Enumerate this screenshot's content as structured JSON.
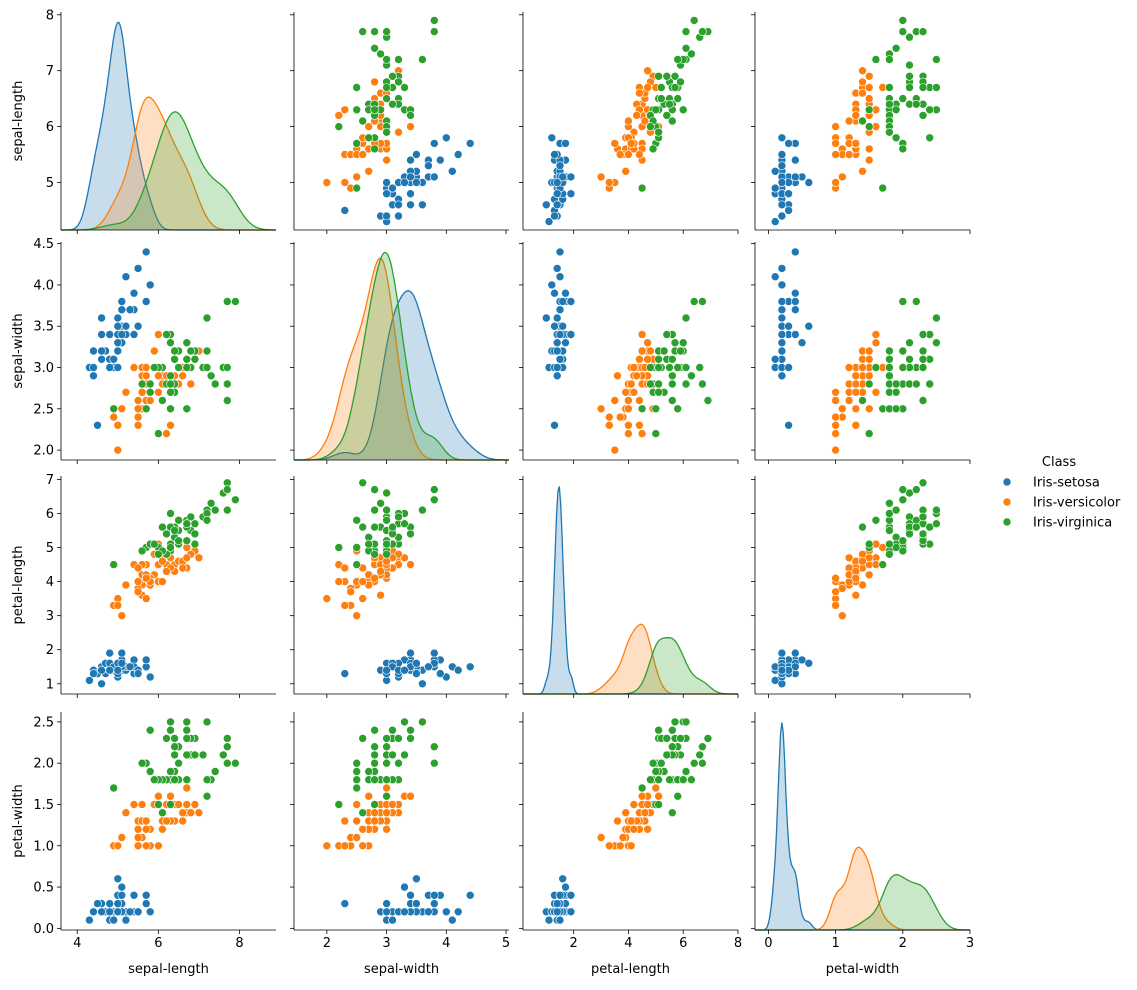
{
  "chart_data": {
    "type": "scatter",
    "subtype": "pairplot",
    "variables": [
      "sepal-length",
      "sepal-width",
      "petal-length",
      "petal-width"
    ],
    "axes": {
      "sepal-length": {
        "range": [
          3.6,
          8.9
        ],
        "ticks": [
          4,
          6,
          8
        ]
      },
      "sepal-width": {
        "range": [
          1.45,
          5.05
        ],
        "ticks": [
          2,
          3,
          4,
          5
        ]
      },
      "petal-length": {
        "range": [
          0.15,
          8.0
        ],
        "ticks": [
          2,
          4,
          6,
          8
        ]
      },
      "petal-width": {
        "range": [
          -0.2,
          3.0
        ],
        "ticks": [
          0,
          1,
          2,
          3
        ]
      }
    },
    "y_axes": {
      "sepal-length": {
        "range": [
          4.15,
          8.05
        ],
        "ticks": [
          5,
          6,
          7,
          8
        ]
      },
      "sepal-width": {
        "range": [
          1.88,
          4.52
        ],
        "ticks": [
          2.0,
          2.5,
          3.0,
          3.5,
          4.0,
          4.5
        ]
      },
      "petal-length": {
        "range": [
          0.7,
          7.1
        ],
        "ticks": [
          1,
          2,
          3,
          4,
          5,
          6,
          7
        ]
      },
      "petal-width": {
        "range": [
          -0.02,
          2.62
        ],
        "ticks": [
          0.0,
          0.5,
          1.0,
          1.5,
          2.0,
          2.5
        ]
      }
    },
    "legend": {
      "title": "Class",
      "placement": "right",
      "entries": [
        "Iris-setosa",
        "Iris-versicolor",
        "Iris-virginica"
      ]
    },
    "grid": false,
    "series": [
      {
        "name": "Iris-setosa",
        "color": "#1f77b4",
        "columns": [
          "sepal-length",
          "sepal-width",
          "petal-length",
          "petal-width"
        ],
        "points": [
          [
            5.1,
            3.5,
            1.4,
            0.2
          ],
          [
            4.9,
            3.0,
            1.4,
            0.2
          ],
          [
            4.7,
            3.2,
            1.3,
            0.2
          ],
          [
            4.6,
            3.1,
            1.5,
            0.2
          ],
          [
            5.0,
            3.6,
            1.4,
            0.2
          ],
          [
            5.4,
            3.9,
            1.7,
            0.4
          ],
          [
            4.6,
            3.4,
            1.4,
            0.3
          ],
          [
            5.0,
            3.4,
            1.5,
            0.2
          ],
          [
            4.4,
            2.9,
            1.4,
            0.2
          ],
          [
            4.9,
            3.1,
            1.5,
            0.1
          ],
          [
            5.4,
            3.7,
            1.5,
            0.2
          ],
          [
            4.8,
            3.4,
            1.6,
            0.2
          ],
          [
            4.8,
            3.0,
            1.4,
            0.1
          ],
          [
            4.3,
            3.0,
            1.1,
            0.1
          ],
          [
            5.8,
            4.0,
            1.2,
            0.2
          ],
          [
            5.7,
            4.4,
            1.5,
            0.4
          ],
          [
            5.4,
            3.9,
            1.3,
            0.4
          ],
          [
            5.1,
            3.5,
            1.4,
            0.3
          ],
          [
            5.7,
            3.8,
            1.7,
            0.3
          ],
          [
            5.1,
            3.8,
            1.5,
            0.3
          ],
          [
            5.4,
            3.4,
            1.7,
            0.2
          ],
          [
            5.1,
            3.7,
            1.5,
            0.4
          ],
          [
            4.6,
            3.6,
            1.0,
            0.2
          ],
          [
            5.1,
            3.3,
            1.7,
            0.5
          ],
          [
            4.8,
            3.4,
            1.9,
            0.2
          ],
          [
            5.0,
            3.0,
            1.6,
            0.2
          ],
          [
            5.0,
            3.4,
            1.6,
            0.4
          ],
          [
            5.2,
            3.5,
            1.5,
            0.2
          ],
          [
            5.2,
            3.4,
            1.4,
            0.2
          ],
          [
            4.7,
            3.2,
            1.6,
            0.2
          ],
          [
            4.8,
            3.1,
            1.6,
            0.2
          ],
          [
            5.4,
            3.4,
            1.5,
            0.4
          ],
          [
            5.2,
            4.1,
            1.5,
            0.1
          ],
          [
            5.5,
            4.2,
            1.4,
            0.2
          ],
          [
            4.9,
            3.1,
            1.5,
            0.1
          ],
          [
            5.0,
            3.2,
            1.2,
            0.2
          ],
          [
            5.5,
            3.5,
            1.3,
            0.2
          ],
          [
            4.9,
            3.1,
            1.5,
            0.1
          ],
          [
            4.4,
            3.0,
            1.3,
            0.2
          ],
          [
            5.1,
            3.4,
            1.5,
            0.2
          ],
          [
            5.0,
            3.5,
            1.3,
            0.3
          ],
          [
            4.5,
            2.3,
            1.3,
            0.3
          ],
          [
            4.4,
            3.2,
            1.3,
            0.2
          ],
          [
            5.0,
            3.5,
            1.6,
            0.6
          ],
          [
            5.1,
            3.8,
            1.9,
            0.4
          ],
          [
            4.8,
            3.0,
            1.4,
            0.3
          ],
          [
            5.1,
            3.8,
            1.6,
            0.2
          ],
          [
            4.6,
            3.2,
            1.4,
            0.2
          ],
          [
            5.3,
            3.7,
            1.5,
            0.2
          ],
          [
            5.0,
            3.3,
            1.4,
            0.2
          ]
        ]
      },
      {
        "name": "Iris-versicolor",
        "color": "#ff7f0e",
        "columns": [
          "sepal-length",
          "sepal-width",
          "petal-length",
          "petal-width"
        ],
        "points": [
          [
            7.0,
            3.2,
            4.7,
            1.4
          ],
          [
            6.4,
            3.2,
            4.5,
            1.5
          ],
          [
            6.9,
            3.1,
            4.9,
            1.5
          ],
          [
            5.5,
            2.3,
            4.0,
            1.3
          ],
          [
            6.5,
            2.8,
            4.6,
            1.5
          ],
          [
            5.7,
            2.8,
            4.5,
            1.3
          ],
          [
            6.3,
            3.3,
            4.7,
            1.6
          ],
          [
            4.9,
            2.4,
            3.3,
            1.0
          ],
          [
            6.6,
            2.9,
            4.6,
            1.3
          ],
          [
            5.2,
            2.7,
            3.9,
            1.4
          ],
          [
            5.0,
            2.0,
            3.5,
            1.0
          ],
          [
            5.9,
            3.0,
            4.2,
            1.5
          ],
          [
            6.0,
            2.2,
            4.0,
            1.0
          ],
          [
            6.1,
            2.9,
            4.7,
            1.4
          ],
          [
            5.6,
            2.9,
            3.6,
            1.3
          ],
          [
            6.7,
            3.1,
            4.4,
            1.4
          ],
          [
            5.6,
            3.0,
            4.5,
            1.5
          ],
          [
            5.8,
            2.7,
            4.1,
            1.0
          ],
          [
            6.2,
            2.2,
            4.5,
            1.5
          ],
          [
            5.6,
            2.5,
            3.9,
            1.1
          ],
          [
            5.9,
            3.2,
            4.8,
            1.8
          ],
          [
            6.1,
            2.8,
            4.0,
            1.3
          ],
          [
            6.3,
            2.5,
            4.9,
            1.5
          ],
          [
            6.1,
            2.8,
            4.7,
            1.2
          ],
          [
            6.4,
            2.9,
            4.3,
            1.3
          ],
          [
            6.6,
            3.0,
            4.4,
            1.4
          ],
          [
            6.8,
            2.8,
            4.8,
            1.4
          ],
          [
            6.7,
            3.0,
            5.0,
            1.7
          ],
          [
            6.0,
            2.9,
            4.5,
            1.5
          ],
          [
            5.7,
            2.6,
            3.5,
            1.0
          ],
          [
            5.5,
            2.4,
            3.8,
            1.1
          ],
          [
            5.5,
            2.4,
            3.7,
            1.0
          ],
          [
            5.8,
            2.7,
            3.9,
            1.2
          ],
          [
            6.0,
            2.7,
            5.1,
            1.6
          ],
          [
            5.4,
            3.0,
            4.5,
            1.5
          ],
          [
            6.0,
            3.4,
            4.5,
            1.6
          ],
          [
            6.7,
            3.1,
            4.7,
            1.5
          ],
          [
            6.3,
            2.3,
            4.4,
            1.3
          ],
          [
            5.6,
            3.0,
            4.1,
            1.3
          ],
          [
            5.5,
            2.5,
            4.0,
            1.3
          ],
          [
            5.5,
            2.6,
            4.4,
            1.2
          ],
          [
            6.1,
            3.0,
            4.6,
            1.4
          ],
          [
            5.8,
            2.6,
            4.0,
            1.2
          ],
          [
            5.0,
            2.3,
            3.3,
            1.0
          ],
          [
            5.6,
            2.7,
            4.2,
            1.3
          ],
          [
            5.7,
            3.0,
            4.2,
            1.2
          ],
          [
            5.7,
            2.9,
            4.2,
            1.3
          ],
          [
            6.2,
            2.9,
            4.3,
            1.3
          ],
          [
            5.1,
            2.5,
            3.0,
            1.1
          ],
          [
            5.7,
            2.8,
            4.1,
            1.3
          ]
        ]
      },
      {
        "name": "Iris-virginica",
        "color": "#2ca02c",
        "columns": [
          "sepal-length",
          "sepal-width",
          "petal-length",
          "petal-width"
        ],
        "points": [
          [
            6.3,
            3.3,
            6.0,
            2.5
          ],
          [
            5.8,
            2.7,
            5.1,
            1.9
          ],
          [
            7.1,
            3.0,
            5.9,
            2.1
          ],
          [
            6.3,
            2.9,
            5.6,
            1.8
          ],
          [
            6.5,
            3.0,
            5.8,
            2.2
          ],
          [
            7.6,
            3.0,
            6.6,
            2.1
          ],
          [
            4.9,
            2.5,
            4.5,
            1.7
          ],
          [
            7.3,
            2.9,
            6.3,
            1.8
          ],
          [
            6.7,
            2.5,
            5.8,
            1.8
          ],
          [
            7.2,
            3.6,
            6.1,
            2.5
          ],
          [
            6.5,
            3.2,
            5.1,
            2.0
          ],
          [
            6.4,
            2.7,
            5.3,
            1.9
          ],
          [
            6.8,
            3.0,
            5.5,
            2.1
          ],
          [
            5.7,
            2.5,
            5.0,
            2.0
          ],
          [
            5.8,
            2.8,
            5.1,
            2.4
          ],
          [
            6.4,
            3.2,
            5.3,
            2.3
          ],
          [
            6.5,
            3.0,
            5.5,
            1.8
          ],
          [
            7.7,
            3.8,
            6.7,
            2.2
          ],
          [
            7.7,
            2.6,
            6.9,
            2.3
          ],
          [
            6.0,
            2.2,
            5.0,
            1.5
          ],
          [
            6.9,
            3.2,
            5.7,
            2.3
          ],
          [
            5.6,
            2.8,
            4.9,
            2.0
          ],
          [
            7.7,
            2.8,
            6.7,
            2.0
          ],
          [
            6.3,
            2.7,
            4.9,
            1.8
          ],
          [
            6.7,
            3.3,
            5.7,
            2.1
          ],
          [
            7.2,
            3.2,
            6.0,
            1.8
          ],
          [
            6.2,
            2.8,
            4.8,
            1.8
          ],
          [
            6.1,
            3.0,
            4.9,
            1.8
          ],
          [
            6.4,
            2.8,
            5.6,
            2.1
          ],
          [
            7.2,
            3.0,
            5.8,
            1.6
          ],
          [
            7.4,
            2.8,
            6.1,
            1.9
          ],
          [
            7.9,
            3.8,
            6.4,
            2.0
          ],
          [
            6.4,
            2.8,
            5.6,
            2.2
          ],
          [
            6.3,
            2.8,
            5.1,
            1.5
          ],
          [
            6.1,
            2.6,
            5.6,
            1.4
          ],
          [
            7.7,
            3.0,
            6.1,
            2.3
          ],
          [
            6.3,
            3.4,
            5.6,
            2.4
          ],
          [
            6.4,
            3.1,
            5.5,
            1.8
          ],
          [
            6.0,
            3.0,
            4.8,
            1.8
          ],
          [
            6.9,
            3.1,
            5.4,
            2.1
          ],
          [
            6.7,
            3.1,
            5.6,
            2.4
          ],
          [
            6.9,
            3.1,
            5.1,
            2.3
          ],
          [
            5.8,
            2.7,
            5.1,
            1.9
          ],
          [
            6.8,
            3.2,
            5.9,
            2.3
          ],
          [
            6.7,
            3.3,
            5.7,
            2.5
          ],
          [
            6.7,
            3.0,
            5.2,
            2.3
          ],
          [
            6.3,
            2.5,
            5.0,
            1.9
          ],
          [
            6.5,
            3.0,
            5.2,
            2.0
          ],
          [
            6.2,
            3.4,
            5.4,
            2.3
          ],
          [
            5.9,
            3.0,
            5.1,
            1.8
          ]
        ]
      }
    ]
  }
}
